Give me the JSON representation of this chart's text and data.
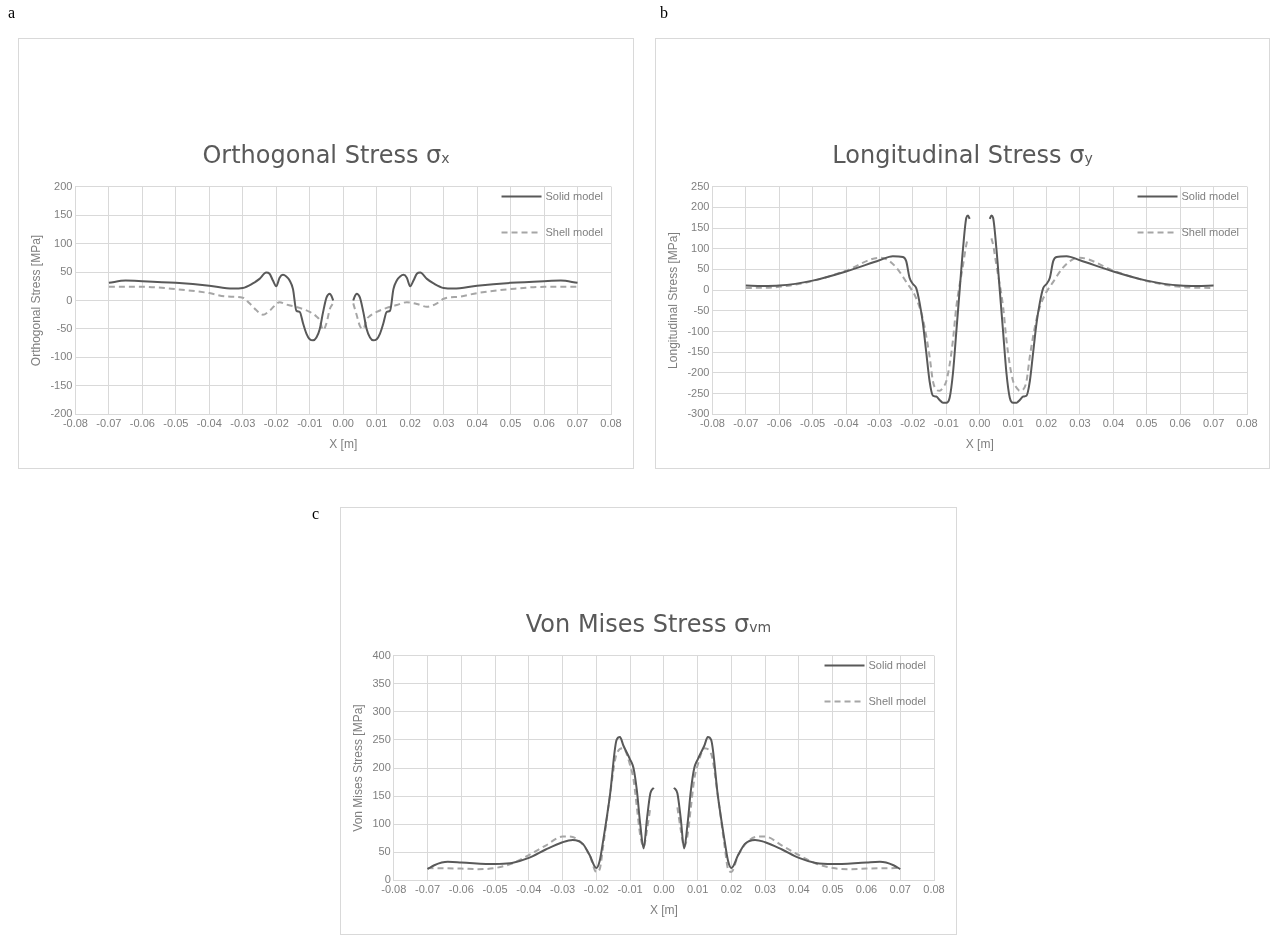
{
  "chart_data": [
    {
      "type": "line",
      "title": "Orthogonal Stress σ$_{x}$",
      "xlabel": "X [m]",
      "ylabel": "Orthogonal Stress [MPa]",
      "annotations": [
        "a"
      ],
      "grid": true,
      "legend": "top right",
      "marker": "none",
      "xlim": [
        -0.08,
        0.08
      ],
      "xticks": [
        {
          "value": -0.08,
          "label": "-0.08"
        },
        {
          "value": -0.07,
          "label": "-0.07"
        },
        {
          "value": -0.06,
          "label": "-0.06"
        },
        {
          "value": -0.05,
          "label": "-0.05"
        },
        {
          "value": -0.04,
          "label": "-0.04"
        },
        {
          "value": -0.03,
          "label": "-0.03"
        },
        {
          "value": -0.02,
          "label": "-0.02"
        },
        {
          "value": -0.01,
          "label": "-0.01"
        },
        {
          "value": 0,
          "label": "0.00"
        },
        {
          "value": 0.01,
          "label": "0.01"
        },
        {
          "value": 0.02,
          "label": "0.02"
        },
        {
          "value": 0.03,
          "label": "0.03"
        },
        {
          "value": 0.04,
          "label": "0.04"
        },
        {
          "value": 0.05,
          "label": "0.05"
        },
        {
          "value": 0.06,
          "label": "0.06"
        },
        {
          "value": 0.07,
          "label": "0.07"
        },
        {
          "value": 0.08,
          "label": "0.08"
        }
      ],
      "ylim": [
        -200,
        200
      ],
      "yticks": [
        -200,
        -150,
        -100,
        -50,
        0,
        50,
        100,
        150,
        200
      ],
      "series": [
        {
          "name": "Solid model",
          "color": "#595959",
          "line_style": "solid",
          "x": [
            -0.07,
            -0.065,
            -0.06,
            -0.05,
            -0.04,
            -0.033,
            -0.03,
            -0.027,
            -0.025,
            -0.023,
            -0.022,
            -0.021,
            -0.02,
            -0.019,
            -0.018,
            -0.017,
            -0.016,
            -0.015,
            -0.014,
            -0.013,
            -0.012,
            -0.011,
            -0.01,
            -0.009,
            -0.008,
            -0.007,
            -0.006,
            -0.005,
            -0.004,
            -0.0035,
            -0.003,
            0,
            0.003,
            0.0035,
            0.004,
            0.005,
            0.006,
            0.007,
            0.008,
            0.009,
            0.01,
            0.011,
            0.012,
            0.013,
            0.014,
            0.015,
            0.016,
            0.017,
            0.018,
            0.019,
            0.02,
            0.021,
            0.022,
            0.023,
            0.025,
            0.027,
            0.03,
            0.033,
            0.04,
            0.05,
            0.06,
            0.065,
            0.07
          ],
          "values": [
            31,
            35,
            34,
            31,
            26,
            21,
            22,
            30,
            38,
            49,
            47,
            35,
            25,
            40,
            45,
            42,
            35,
            20,
            -18,
            -20,
            -40,
            -58,
            -68,
            -70,
            -65,
            -50,
            -20,
            5,
            12,
            8,
            0,
            null,
            0,
            8,
            12,
            5,
            -20,
            -50,
            -65,
            -70,
            -68,
            -58,
            -40,
            -20,
            -18,
            20,
            35,
            42,
            45,
            40,
            25,
            35,
            47,
            49,
            38,
            30,
            22,
            21,
            26,
            31,
            34,
            35,
            31
          ]
        },
        {
          "name": "Shell model",
          "color": "#a6a6a6",
          "line_style": "dashed",
          "x": [
            -0.07,
            -0.06,
            -0.05,
            -0.04,
            -0.035,
            -0.03,
            -0.028,
            -0.025,
            -0.024,
            -0.022,
            -0.019,
            -0.017,
            -0.013,
            -0.01,
            -0.008,
            -0.007,
            -0.006,
            -0.005,
            -0.004,
            -0.003,
            0,
            0.003,
            0.004,
            0.005,
            0.006,
            0.007,
            0.008,
            0.01,
            0.013,
            0.016,
            0.019,
            0.022,
            0.025,
            0.028,
            0.03,
            0.035,
            0.04,
            0.05,
            0.06,
            0.07
          ],
          "values": [
            24,
            24,
            20,
            13,
            7,
            5,
            -5,
            -22,
            -25,
            -18,
            -3,
            -7,
            -13,
            -20,
            -28,
            -35,
            -52,
            -40,
            -15,
            -5,
            null,
            -5,
            -25,
            -45,
            -50,
            -33,
            -27,
            -20,
            -13,
            -8,
            -3,
            -6,
            -11,
            -5,
            3,
            7,
            13,
            20,
            24,
            24
          ]
        }
      ]
    },
    {
      "type": "line",
      "title": "Longitudinal Stress σ$_{y}$",
      "xlabel": "X [m]",
      "ylabel": "Longitudinal Stress [MPa]",
      "annotations": [
        "b"
      ],
      "grid": true,
      "legend": "top right",
      "marker": "none",
      "xlim": [
        -0.08,
        0.08
      ],
      "xticks": [
        {
          "value": -0.08,
          "label": "-0.08"
        },
        {
          "value": -0.07,
          "label": "-0.07"
        },
        {
          "value": -0.06,
          "label": "-0.06"
        },
        {
          "value": -0.05,
          "label": "-0.05"
        },
        {
          "value": -0.04,
          "label": "-0.04"
        },
        {
          "value": -0.03,
          "label": "-0.03"
        },
        {
          "value": -0.02,
          "label": "-0.02"
        },
        {
          "value": -0.01,
          "label": "-0.01"
        },
        {
          "value": 0,
          "label": "0.00"
        },
        {
          "value": 0.01,
          "label": "0.01"
        },
        {
          "value": 0.02,
          "label": "0.02"
        },
        {
          "value": 0.03,
          "label": "0.03"
        },
        {
          "value": 0.04,
          "label": "0.04"
        },
        {
          "value": 0.05,
          "label": "0.05"
        },
        {
          "value": 0.06,
          "label": "0.06"
        },
        {
          "value": 0.07,
          "label": "0.07"
        },
        {
          "value": 0.08,
          "label": "0.08"
        }
      ],
      "ylim": [
        -300,
        250
      ],
      "yticks": [
        -300,
        -250,
        -200,
        -150,
        -100,
        -50,
        0,
        50,
        100,
        150,
        200,
        250
      ],
      "series": [
        {
          "name": "Solid model",
          "color": "#595959",
          "line_style": "solid",
          "x": [
            -0.07,
            -0.065,
            -0.06,
            -0.05,
            -0.04,
            -0.03,
            -0.026,
            -0.023,
            -0.022,
            -0.021,
            -0.02,
            -0.019,
            -0.018,
            -0.017,
            -0.016,
            -0.015,
            -0.014,
            -0.013,
            -0.012,
            -0.011,
            -0.01,
            -0.009,
            -0.008,
            -0.007,
            -0.006,
            -0.005,
            -0.004,
            -0.0035,
            -0.003,
            0,
            0.003,
            0.0035,
            0.004,
            0.005,
            0.006,
            0.007,
            0.008,
            0.009,
            0.01,
            0.011,
            0.012,
            0.013,
            0.014,
            0.015,
            0.016,
            0.017,
            0.018,
            0.019,
            0.02,
            0.021,
            0.022,
            0.023,
            0.026,
            0.03,
            0.04,
            0.05,
            0.06,
            0.065,
            0.07
          ],
          "values": [
            11,
            10,
            11,
            23,
            45,
            72,
            82,
            80,
            70,
            30,
            15,
            5,
            -30,
            -80,
            -150,
            -220,
            -255,
            -257,
            -265,
            -272,
            -272,
            -260,
            -200,
            -100,
            0,
            100,
            175,
            180,
            172,
            null,
            172,
            180,
            175,
            100,
            0,
            -100,
            -200,
            -260,
            -272,
            -272,
            -265,
            -257,
            -255,
            -220,
            -150,
            -80,
            -30,
            5,
            15,
            30,
            70,
            80,
            82,
            72,
            45,
            23,
            11,
            10,
            11
          ]
        },
        {
          "name": "Shell model",
          "color": "#a6a6a6",
          "line_style": "dashed",
          "x": [
            -0.07,
            -0.06,
            -0.05,
            -0.04,
            -0.03,
            -0.028,
            -0.025,
            -0.022,
            -0.019,
            -0.017,
            -0.015,
            -0.014,
            -0.013,
            -0.012,
            -0.011,
            -0.01,
            -0.009,
            -0.008,
            -0.007,
            -0.005,
            -0.004,
            -0.0035,
            0,
            0.0035,
            0.004,
            0.005,
            0.007,
            0.008,
            0.009,
            0.01,
            0.011,
            0.012,
            0.013,
            0.014,
            0.015,
            0.017,
            0.019,
            0.022,
            0.025,
            0.028,
            0.03,
            0.04,
            0.05,
            0.06,
            0.07
          ],
          "values": [
            5,
            8,
            22,
            47,
            78,
            75,
            55,
            20,
            -20,
            -70,
            -160,
            -220,
            -240,
            -243,
            -235,
            -220,
            -180,
            -120,
            -40,
            60,
            110,
            125,
            null,
            125,
            110,
            60,
            -40,
            -120,
            -180,
            -220,
            -235,
            -243,
            -240,
            -220,
            -160,
            -70,
            -20,
            20,
            55,
            75,
            78,
            47,
            22,
            8,
            5
          ]
        }
      ]
    },
    {
      "type": "line",
      "title": "Von Mises Stress σ$_{vm}$",
      "xlabel": "X [m]",
      "ylabel": "Von Mises Stress [MPa]",
      "annotations": [
        "c"
      ],
      "grid": true,
      "legend": "top right",
      "marker": "none",
      "xlim": [
        -0.08,
        0.08
      ],
      "xticks": [
        {
          "value": -0.08,
          "label": "-0.08"
        },
        {
          "value": -0.07,
          "label": "-0.07"
        },
        {
          "value": -0.06,
          "label": "-0.06"
        },
        {
          "value": -0.05,
          "label": "-0.05"
        },
        {
          "value": -0.04,
          "label": "-0.04"
        },
        {
          "value": -0.03,
          "label": "-0.03"
        },
        {
          "value": -0.02,
          "label": "-0.02"
        },
        {
          "value": -0.01,
          "label": "-0.01"
        },
        {
          "value": 0,
          "label": "0.00"
        },
        {
          "value": 0.01,
          "label": "0.01"
        },
        {
          "value": 0.02,
          "label": "0.02"
        },
        {
          "value": 0.03,
          "label": "0.03"
        },
        {
          "value": 0.04,
          "label": "0.04"
        },
        {
          "value": 0.05,
          "label": "0.05"
        },
        {
          "value": 0.06,
          "label": "0.06"
        },
        {
          "value": 0.07,
          "label": "0.07"
        },
        {
          "value": 0.08,
          "label": "0.08"
        }
      ],
      "ylim": [
        0,
        400
      ],
      "yticks": [
        0,
        50,
        100,
        150,
        200,
        250,
        300,
        350,
        400
      ],
      "series": [
        {
          "name": "Solid model",
          "color": "#595959",
          "line_style": "solid",
          "x": [
            -0.07,
            -0.068,
            -0.064,
            -0.06,
            -0.05,
            -0.045,
            -0.04,
            -0.035,
            -0.03,
            -0.027,
            -0.024,
            -0.022,
            -0.02,
            -0.019,
            -0.018,
            -0.016,
            -0.014,
            -0.013,
            -0.012,
            -0.01,
            -0.009,
            -0.008,
            -0.007,
            -0.006,
            -0.005,
            -0.004,
            -0.003,
            0,
            0.003,
            0.004,
            0.005,
            0.006,
            0.007,
            0.008,
            0.009,
            0.01,
            0.012,
            0.013,
            0.014,
            0.016,
            0.018,
            0.019,
            0.02,
            0.022,
            0.024,
            0.027,
            0.03,
            0.035,
            0.04,
            0.045,
            0.05,
            0.06,
            0.064,
            0.068,
            0.07
          ],
          "values": [
            20,
            27,
            33,
            32,
            29,
            31,
            40,
            55,
            68,
            72,
            65,
            45,
            22,
            35,
            70,
            150,
            250,
            255,
            240,
            215,
            200,
            160,
            100,
            57,
            110,
            155,
            165,
            null,
            165,
            155,
            110,
            57,
            100,
            160,
            200,
            215,
            240,
            255,
            250,
            150,
            70,
            35,
            22,
            45,
            65,
            72,
            68,
            55,
            40,
            31,
            29,
            32,
            33,
            27,
            20
          ]
        },
        {
          "name": "Shell model",
          "color": "#a6a6a6",
          "line_style": "dashed",
          "x": [
            -0.07,
            -0.06,
            -0.055,
            -0.05,
            -0.045,
            -0.04,
            -0.035,
            -0.03,
            -0.028,
            -0.025,
            -0.022,
            -0.02,
            -0.019,
            -0.018,
            -0.016,
            -0.014,
            -0.012,
            -0.01,
            -0.009,
            -0.008,
            -0.007,
            -0.006,
            -0.005,
            -0.004,
            0,
            0.004,
            0.005,
            0.006,
            0.007,
            0.008,
            0.009,
            0.01,
            0.012,
            0.014,
            0.016,
            0.018,
            0.019,
            0.02,
            0.022,
            0.025,
            0.028,
            0.03,
            0.035,
            0.04,
            0.045,
            0.05,
            0.055,
            0.06,
            0.07
          ],
          "values": [
            22,
            21,
            20,
            22,
            30,
            45,
            62,
            78,
            78,
            70,
            45,
            15,
            20,
            60,
            150,
            225,
            235,
            205,
            180,
            130,
            80,
            60,
            90,
            130,
            null,
            130,
            90,
            60,
            80,
            130,
            180,
            205,
            235,
            225,
            150,
            60,
            20,
            15,
            45,
            70,
            78,
            78,
            62,
            45,
            30,
            22,
            20,
            21,
            22
          ]
        }
      ]
    }
  ]
}
